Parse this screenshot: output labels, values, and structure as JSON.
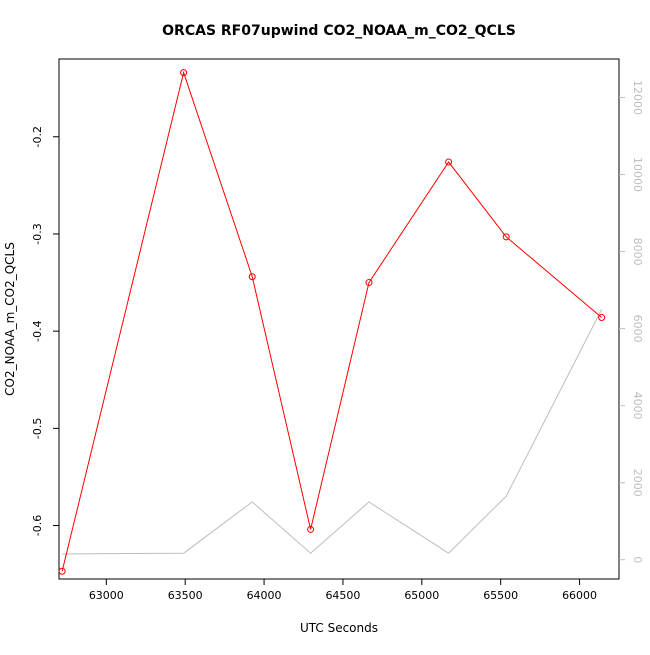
{
  "chart_data": {
    "type": "line",
    "title": "ORCAS RF07upwind CO2_NOAA_m_CO2_QCLS",
    "xlabel": "UTC Seconds",
    "ylabel": "CO2_NOAA_m_CO2_QCLS",
    "y2label": "",
    "xlim": [
      62700,
      66250
    ],
    "ylim": [
      -0.655,
      -0.12
    ],
    "y2lim": [
      -500,
      13000
    ],
    "xticks": [
      63000,
      63500,
      64000,
      64500,
      65000,
      65500,
      66000
    ],
    "yticks": [
      -0.6,
      -0.5,
      -0.4,
      -0.3,
      -0.2
    ],
    "y2ticks": [
      0,
      2000,
      4000,
      6000,
      8000,
      10000,
      12000
    ],
    "grid": false,
    "series": [
      {
        "name": "",
        "axis": "left",
        "color": "#ff0000",
        "marker": "open-circle",
        "x": [
          62720,
          63490,
          63925,
          64295,
          64665,
          65170,
          65535,
          66140
        ],
        "y": [
          -0.647,
          -0.134,
          -0.344,
          -0.604,
          -0.35,
          -0.226,
          -0.303,
          -0.386
        ]
      },
      {
        "name": "",
        "axis": "right",
        "color": "#bdbdbd",
        "marker": "none",
        "x": [
          62720,
          63490,
          63925,
          64295,
          64665,
          65170,
          65535,
          66140
        ],
        "y": [
          150,
          170,
          1500,
          170,
          1500,
          170,
          1650,
          6500
        ]
      }
    ]
  }
}
